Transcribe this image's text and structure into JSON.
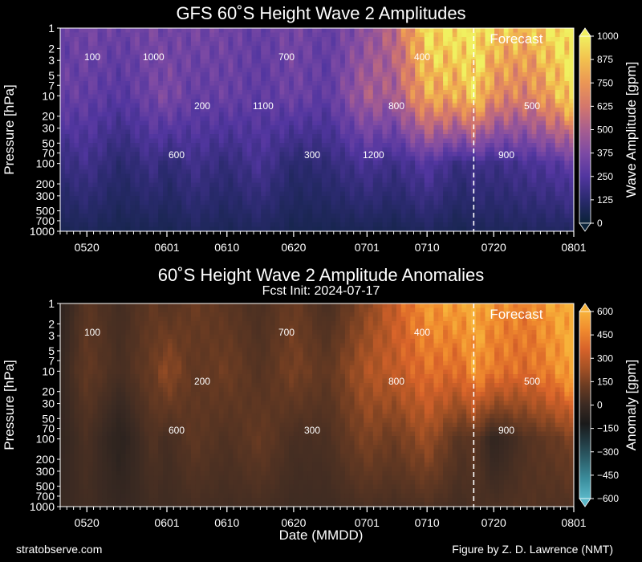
{
  "figure": {
    "footer_left": "stratobserve.com",
    "footer_right": "Figure by Z. D. Lawrence (NMT)",
    "xlabel": "Date (MMDD)",
    "subtitle": "Fcst Init: 2024-07-17",
    "forecast_label": "Forecast"
  },
  "chart_data": [
    {
      "type": "heatmap",
      "title": "GFS 60˚S Height Wave 2 Amplitudes",
      "xlabel": "",
      "ylabel": "Pressure [hPa]",
      "colorbar_label": "Wave Amplitude [gpm]",
      "colorbar_ticks": [
        "0",
        "125",
        "250",
        "375",
        "500",
        "625",
        "750",
        "875",
        "1000"
      ],
      "colorbar_range": [
        0,
        1000
      ],
      "colormap": [
        "#0a2238",
        "#2a2a6e",
        "#5236a0",
        "#7d4aa4",
        "#a85e8f",
        "#d4776c",
        "#eb9655",
        "#f2c14e",
        "#f0f060"
      ],
      "y_scale": "log",
      "y_ticks": [
        "1",
        "2",
        "3",
        "5",
        "7",
        "10",
        "20",
        "30",
        "50",
        "70",
        "100",
        "200",
        "300",
        "500",
        "700",
        "1000"
      ],
      "x_ticks": [
        "0520",
        "0601",
        "0610",
        "0620",
        "0701",
        "0710",
        "0720",
        "0801"
      ],
      "x_range": [
        "2024-05-16",
        "2024-08-01"
      ],
      "forecast_start": "2024-07-17",
      "field_samples": {
        "dates": [
          "0516",
          "0520",
          "0525",
          "0530",
          "0601",
          "0605",
          "0610",
          "0615",
          "0620",
          "0625",
          "0701",
          "0705",
          "0710",
          "0715",
          "0717",
          "0720",
          "0725",
          "0730",
          "0801"
        ],
        "levels_hPa": [
          1,
          10,
          100,
          1000
        ],
        "values_gpm": [
          [
            300,
            350,
            320,
            360,
            330,
            350,
            340,
            300,
            360,
            300,
            420,
            550,
            950,
            1000,
            1000,
            900,
            850,
            1000,
            1000
          ],
          [
            320,
            300,
            260,
            340,
            380,
            300,
            320,
            280,
            330,
            280,
            500,
            480,
            800,
            800,
            950,
            700,
            650,
            850,
            1000
          ],
          [
            160,
            200,
            120,
            190,
            130,
            200,
            150,
            220,
            120,
            150,
            220,
            180,
            260,
            160,
            200,
            180,
            220,
            260,
            300
          ],
          [
            60,
            80,
            60,
            70,
            60,
            90,
            70,
            90,
            60,
            60,
            70,
            60,
            90,
            60,
            80,
            80,
            90,
            90,
            100
          ]
        ]
      },
      "contour_labels": [
        "100",
        "200",
        "300",
        "400",
        "500",
        "600",
        "700",
        "800",
        "900",
        "1000",
        "1100",
        "1200"
      ]
    },
    {
      "type": "heatmap",
      "title": "60˚S Height Wave 2 Amplitude Anomalies",
      "xlabel": "Date (MMDD)",
      "ylabel": "Pressure [hPa]",
      "colorbar_label": "Anomaly [gpm]",
      "colorbar_ticks": [
        "600",
        "450",
        "300",
        "150",
        "0",
        "−150",
        "−300",
        "−450",
        "−600"
      ],
      "colorbar_range": [
        -600,
        600
      ],
      "colormap": [
        "#5bb8c9",
        "#3c8f9e",
        "#2e6470",
        "#223c44",
        "#1a1a1a",
        "#3b2a22",
        "#6a3b22",
        "#a65225",
        "#d8632a",
        "#f08a2e",
        "#f7b23a"
      ],
      "y_scale": "log",
      "y_ticks": [
        "1",
        "2",
        "3",
        "5",
        "7",
        "10",
        "20",
        "30",
        "50",
        "70",
        "100",
        "200",
        "300",
        "500",
        "700",
        "1000"
      ],
      "x_ticks": [
        "0520",
        "0601",
        "0610",
        "0620",
        "0701",
        "0710",
        "0720",
        "0801"
      ],
      "x_range": [
        "2024-05-16",
        "2024-08-01"
      ],
      "forecast_start": "2024-07-17",
      "field_samples": {
        "dates": [
          "0516",
          "0520",
          "0525",
          "0530",
          "0601",
          "0605",
          "0610",
          "0615",
          "0620",
          "0625",
          "0701",
          "0705",
          "0710",
          "0715",
          "0717",
          "0720",
          "0725",
          "0730",
          "0801"
        ],
        "levels_hPa": [
          1,
          10,
          100,
          1000
        ],
        "values_gpm": [
          [
            -50,
            80,
            20,
            100,
            60,
            120,
            80,
            40,
            120,
            30,
            180,
            320,
            520,
            550,
            600,
            500,
            450,
            580,
            600
          ],
          [
            -20,
            100,
            30,
            120,
            200,
            90,
            130,
            60,
            150,
            90,
            260,
            300,
            400,
            380,
            520,
            420,
            380,
            500,
            600
          ],
          [
            -30,
            40,
            -60,
            60,
            20,
            90,
            50,
            110,
            30,
            40,
            160,
            120,
            220,
            60,
            90,
            -40,
            60,
            120,
            160
          ],
          [
            -10,
            20,
            -20,
            20,
            10,
            30,
            20,
            30,
            10,
            10,
            40,
            30,
            50,
            20,
            40,
            40,
            60,
            50,
            60
          ]
        ]
      },
      "contour_labels": [
        "100",
        "200",
        "300",
        "400",
        "500",
        "600",
        "700",
        "800",
        "900"
      ]
    }
  ]
}
